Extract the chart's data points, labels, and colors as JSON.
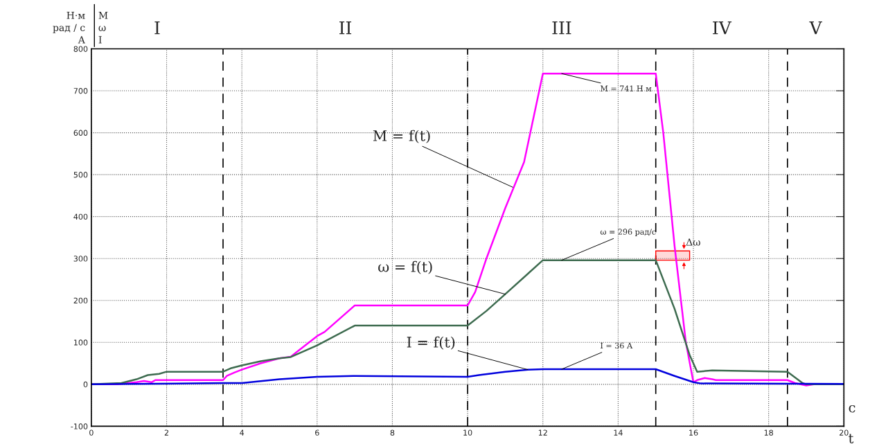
{
  "chart_data": {
    "type": "line",
    "ylabel": "Н·м\nрад / с\nА",
    "xlabel": "t",
    "x": [
      0,
      0.7,
      1.2,
      1.4,
      1.6,
      1.7,
      2,
      3.5,
      3.6,
      3.8,
      4,
      4.5,
      5,
      5.3,
      6,
      6.2,
      7,
      10,
      10.2,
      10.5,
      11,
      11.5,
      12,
      15,
      15.2,
      15.5,
      15.8,
      16,
      16.1,
      16.3,
      16.5,
      16.6,
      18.5,
      18.7,
      19,
      19.2,
      20
    ],
    "series": [
      {
        "color": "#ff00ff",
        "values": [
          0,
          0,
          5,
          8,
          5,
          10,
          10,
          10,
          20,
          28,
          35,
          50,
          62,
          66,
          115,
          125,
          188,
          188,
          220,
          300,
          420,
          530,
          741,
          741,
          600,
          330,
          100,
          5,
          10,
          15,
          12,
          10,
          10,
          3,
          -3,
          0,
          0
        ]
      },
      {
        "color": "#3d6b4f",
        "x": [
          0,
          0.8,
          1.2,
          1.5,
          1.8,
          2,
          3.5,
          3.7,
          4,
          4.5,
          5,
          5.3,
          6,
          7,
          10,
          10.5,
          11,
          12,
          15,
          15.5,
          15.9,
          16.1,
          16.5,
          18.5,
          18.9,
          19,
          20
        ],
        "values": [
          0,
          3,
          12,
          22,
          25,
          30,
          30,
          38,
          45,
          55,
          62,
          65,
          93,
          140,
          140,
          175,
          215,
          296,
          296,
          180,
          70,
          30,
          33,
          30,
          3,
          0,
          0
        ]
      },
      {
        "color": "#0000dd",
        "x": [
          0,
          3.5,
          4,
          5,
          6,
          7,
          10,
          10.3,
          11,
          11.6,
          12,
          15,
          15.5,
          16,
          16.2,
          20
        ],
        "values": [
          0,
          3,
          3,
          12,
          18,
          20,
          18,
          22,
          30,
          35,
          36,
          36,
          20,
          5,
          2,
          1
        ]
      }
    ],
    "xlim": [
      0,
      20
    ],
    "ylim": [
      -100,
      800
    ],
    "xticks": [
      0,
      2,
      4,
      6,
      8,
      10,
      12,
      14,
      16,
      18,
      20
    ],
    "yticks": [
      -100,
      0,
      100,
      200,
      300,
      400,
      500,
      600,
      700,
      800
    ],
    "grid": true,
    "marker": "none",
    "line_style": "solid",
    "ref_lines": [
      {
        "axis": "x",
        "value": 3.5,
        "line_style": "dashed",
        "color": "#000000"
      },
      {
        "axis": "x",
        "value": 10,
        "line_style": "dashed",
        "color": "#000000"
      },
      {
        "axis": "x",
        "value": 15,
        "line_style": "dashed",
        "color": "#000000"
      },
      {
        "axis": "x",
        "value": 18.5,
        "line_style": "dashed",
        "color": "#000000"
      }
    ],
    "bands": [
      {
        "axis": "y",
        "from": 296,
        "to": 318,
        "label": "Δω",
        "color": "#ff0000"
      }
    ],
    "annotations": [
      "I",
      "II",
      "III",
      "IV",
      "V",
      "M\nω\nI",
      "с",
      {
        "text": "M = f(t)",
        "x": 11.2,
        "y": 470
      },
      {
        "text": "ω = f(t)",
        "x": 11,
        "y": 215
      },
      {
        "text": "I = f(t)",
        "x": 11.6,
        "y": 35
      },
      {
        "text": "M = 741 Н м",
        "x": 12.5,
        "y": 741
      },
      {
        "text": "ω = 296 рад/с",
        "x": 12.5,
        "y": 296
      },
      {
        "text": "I = 36 А",
        "x": 12.5,
        "y": 36
      }
    ]
  }
}
